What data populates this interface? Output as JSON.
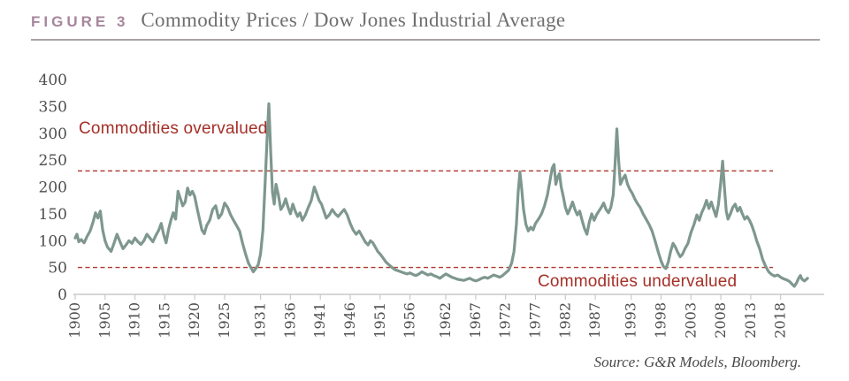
{
  "figure": {
    "label": "FIGURE 3",
    "title": "Commodity Prices / Dow Jones Industrial Average"
  },
  "annotations": {
    "overvalued": "Commodities overvalued",
    "undervalued": "Commodities undervalued"
  },
  "source": "Source: G&R Models, Bloomberg.",
  "colors": {
    "figure_label": "#A6869B",
    "title": "#6F6F6F",
    "rule": "#A9A2A8",
    "line": "#7E978F",
    "threshold": "#AF382B",
    "annotation": "#A43028",
    "axis": "#C9C9C9",
    "tick_label": "#4E4E4E",
    "source": "#4A4A4A"
  },
  "chart_data": {
    "type": "line",
    "title": "Commodity Prices / Dow Jones Industrial Average",
    "xlabel": "",
    "ylabel": "",
    "ylim": [
      0,
      400
    ],
    "ytick_step": 50,
    "xlim": [
      1900,
      2025
    ],
    "x_tick_years": [
      1900,
      1905,
      1910,
      1915,
      1920,
      1925,
      1931,
      1936,
      1941,
      1946,
      1951,
      1956,
      1962,
      1967,
      1972,
      1977,
      1982,
      1987,
      1993,
      1998,
      2003,
      2008,
      2013,
      2018
    ],
    "grid": false,
    "legend": "none",
    "thresholds": {
      "overvalued_above": 230,
      "undervalued_below": 50
    },
    "series": [
      {
        "name": "Commodity Prices / Dow Jones Industrial Average (indexed)",
        "points": [
          [
            1900,
            105
          ],
          [
            1900.3,
            112
          ],
          [
            1900.6,
            98
          ],
          [
            1901,
            102
          ],
          [
            1901.5,
            96
          ],
          [
            1902,
            108
          ],
          [
            1902.5,
            118
          ],
          [
            1903,
            135
          ],
          [
            1903.4,
            152
          ],
          [
            1903.8,
            142
          ],
          [
            1904.2,
            155
          ],
          [
            1904.6,
            120
          ],
          [
            1905,
            100
          ],
          [
            1905.4,
            88
          ],
          [
            1906,
            80
          ],
          [
            1906.5,
            95
          ],
          [
            1907,
            112
          ],
          [
            1907.5,
            98
          ],
          [
            1908,
            85
          ],
          [
            1908.5,
            92
          ],
          [
            1909,
            100
          ],
          [
            1909.5,
            95
          ],
          [
            1910,
            105
          ],
          [
            1910.5,
            98
          ],
          [
            1911,
            93
          ],
          [
            1911.5,
            100
          ],
          [
            1912,
            112
          ],
          [
            1912.5,
            105
          ],
          [
            1913,
            98
          ],
          [
            1913.5,
            110
          ],
          [
            1914,
            120
          ],
          [
            1914.4,
            132
          ],
          [
            1914.8,
            112
          ],
          [
            1915.2,
            96
          ],
          [
            1915.6,
            120
          ],
          [
            1916,
            138
          ],
          [
            1916.4,
            152
          ],
          [
            1916.8,
            140
          ],
          [
            1917.2,
            192
          ],
          [
            1917.6,
            178
          ],
          [
            1918,
            165
          ],
          [
            1918.4,
            172
          ],
          [
            1918.8,
            198
          ],
          [
            1919.2,
            185
          ],
          [
            1919.6,
            192
          ],
          [
            1920,
            182
          ],
          [
            1920.4,
            160
          ],
          [
            1920.8,
            140
          ],
          [
            1921.2,
            120
          ],
          [
            1921.6,
            113
          ],
          [
            1922,
            128
          ],
          [
            1922.5,
            138
          ],
          [
            1923,
            158
          ],
          [
            1923.5,
            165
          ],
          [
            1924,
            142
          ],
          [
            1924.5,
            150
          ],
          [
            1925,
            170
          ],
          [
            1925.5,
            162
          ],
          [
            1926,
            148
          ],
          [
            1926.5,
            138
          ],
          [
            1927,
            128
          ],
          [
            1927.5,
            118
          ],
          [
            1928,
            95
          ],
          [
            1928.5,
            75
          ],
          [
            1929,
            58
          ],
          [
            1929.4,
            50
          ],
          [
            1929.8,
            42
          ],
          [
            1930.2,
            48
          ],
          [
            1930.6,
            55
          ],
          [
            1931,
            75
          ],
          [
            1931.4,
            120
          ],
          [
            1931.8,
            215
          ],
          [
            1932.1,
            290
          ],
          [
            1932.4,
            355
          ],
          [
            1932.7,
            265
          ],
          [
            1933,
            190
          ],
          [
            1933.3,
            168
          ],
          [
            1933.6,
            205
          ],
          [
            1934,
            185
          ],
          [
            1934.4,
            158
          ],
          [
            1934.8,
            165
          ],
          [
            1935.2,
            178
          ],
          [
            1935.6,
            162
          ],
          [
            1936,
            150
          ],
          [
            1936.4,
            168
          ],
          [
            1936.8,
            155
          ],
          [
            1937.2,
            145
          ],
          [
            1937.6,
            152
          ],
          [
            1938,
            138
          ],
          [
            1938.5,
            148
          ],
          [
            1939,
            162
          ],
          [
            1939.5,
            175
          ],
          [
            1940,
            200
          ],
          [
            1940.4,
            188
          ],
          [
            1940.8,
            175
          ],
          [
            1941.2,
            168
          ],
          [
            1941.6,
            155
          ],
          [
            1942,
            142
          ],
          [
            1942.5,
            148
          ],
          [
            1943,
            158
          ],
          [
            1943.5,
            150
          ],
          [
            1944,
            145
          ],
          [
            1944.5,
            152
          ],
          [
            1945,
            158
          ],
          [
            1945.5,
            148
          ],
          [
            1946,
            132
          ],
          [
            1946.5,
            120
          ],
          [
            1947,
            112
          ],
          [
            1947.5,
            118
          ],
          [
            1948,
            108
          ],
          [
            1948.5,
            98
          ],
          [
            1949,
            92
          ],
          [
            1949.4,
            100
          ],
          [
            1949.8,
            96
          ],
          [
            1950.2,
            88
          ],
          [
            1950.6,
            80
          ],
          [
            1951,
            75
          ],
          [
            1951.5,
            68
          ],
          [
            1952,
            60
          ],
          [
            1952.5,
            55
          ],
          [
            1953,
            50
          ],
          [
            1953.5,
            46
          ],
          [
            1954,
            44
          ],
          [
            1954.5,
            42
          ],
          [
            1955,
            40
          ],
          [
            1955.5,
            38
          ],
          [
            1956,
            40
          ],
          [
            1956.5,
            37
          ],
          [
            1957,
            35
          ],
          [
            1957.5,
            38
          ],
          [
            1958,
            42
          ],
          [
            1958.5,
            39
          ],
          [
            1959,
            36
          ],
          [
            1959.5,
            38
          ],
          [
            1960,
            35
          ],
          [
            1960.5,
            33
          ],
          [
            1961,
            30
          ],
          [
            1961.5,
            34
          ],
          [
            1962,
            38
          ],
          [
            1962.5,
            35
          ],
          [
            1963,
            32
          ],
          [
            1963.5,
            30
          ],
          [
            1964,
            28
          ],
          [
            1964.5,
            27
          ],
          [
            1965,
            26
          ],
          [
            1965.5,
            28
          ],
          [
            1966,
            30
          ],
          [
            1966.5,
            27
          ],
          [
            1967,
            25
          ],
          [
            1967.5,
            27
          ],
          [
            1968,
            30
          ],
          [
            1968.5,
            32
          ],
          [
            1969,
            30
          ],
          [
            1969.5,
            33
          ],
          [
            1970,
            36
          ],
          [
            1970.5,
            34
          ],
          [
            1971,
            32
          ],
          [
            1971.5,
            35
          ],
          [
            1972,
            40
          ],
          [
            1972.5,
            45
          ],
          [
            1973,
            58
          ],
          [
            1973.4,
            80
          ],
          [
            1973.8,
            130
          ],
          [
            1974.1,
            190
          ],
          [
            1974.4,
            228
          ],
          [
            1974.7,
            195
          ],
          [
            1975,
            158
          ],
          [
            1975.4,
            130
          ],
          [
            1975.8,
            118
          ],
          [
            1976.2,
            125
          ],
          [
            1976.6,
            120
          ],
          [
            1977,
            132
          ],
          [
            1977.5,
            140
          ],
          [
            1978,
            150
          ],
          [
            1978.5,
            165
          ],
          [
            1979,
            185
          ],
          [
            1979.4,
            210
          ],
          [
            1979.8,
            235
          ],
          [
            1980.1,
            242
          ],
          [
            1980.4,
            205
          ],
          [
            1980.7,
            218
          ],
          [
            1981,
            225
          ],
          [
            1981.3,
            200
          ],
          [
            1981.6,
            185
          ],
          [
            1982,
            162
          ],
          [
            1982.4,
            150
          ],
          [
            1982.8,
            160
          ],
          [
            1983.2,
            172
          ],
          [
            1983.6,
            158
          ],
          [
            1984,
            148
          ],
          [
            1984.4,
            155
          ],
          [
            1984.8,
            138
          ],
          [
            1985.2,
            122
          ],
          [
            1985.6,
            112
          ],
          [
            1986,
            135
          ],
          [
            1986.4,
            150
          ],
          [
            1986.8,
            138
          ],
          [
            1987.2,
            148
          ],
          [
            1987.6,
            155
          ],
          [
            1988,
            162
          ],
          [
            1988.4,
            170
          ],
          [
            1988.8,
            158
          ],
          [
            1989.2,
            152
          ],
          [
            1989.6,
            162
          ],
          [
            1990,
            185
          ],
          [
            1990.3,
            240
          ],
          [
            1990.6,
            308
          ],
          [
            1990.9,
            250
          ],
          [
            1991.2,
            205
          ],
          [
            1991.6,
            215
          ],
          [
            1992,
            222
          ],
          [
            1992.4,
            205
          ],
          [
            1992.8,
            195
          ],
          [
            1993.2,
            188
          ],
          [
            1993.6,
            178
          ],
          [
            1994,
            170
          ],
          [
            1994.5,
            162
          ],
          [
            1995,
            150
          ],
          [
            1995.5,
            140
          ],
          [
            1996,
            130
          ],
          [
            1996.5,
            118
          ],
          [
            1997,
            100
          ],
          [
            1997.5,
            80
          ],
          [
            1998,
            62
          ],
          [
            1998.4,
            52
          ],
          [
            1998.8,
            48
          ],
          [
            1999.2,
            60
          ],
          [
            1999.6,
            80
          ],
          [
            2000,
            95
          ],
          [
            2000.4,
            88
          ],
          [
            2000.8,
            78
          ],
          [
            2001.2,
            70
          ],
          [
            2001.6,
            75
          ],
          [
            2002,
            85
          ],
          [
            2002.5,
            95
          ],
          [
            2003,
            115
          ],
          [
            2003.5,
            130
          ],
          [
            2004,
            148
          ],
          [
            2004.4,
            138
          ],
          [
            2004.8,
            152
          ],
          [
            2005.2,
            162
          ],
          [
            2005.6,
            175
          ],
          [
            2006,
            160
          ],
          [
            2006.4,
            172
          ],
          [
            2006.8,
            158
          ],
          [
            2007.2,
            145
          ],
          [
            2007.6,
            168
          ],
          [
            2008,
            210
          ],
          [
            2008.3,
            248
          ],
          [
            2008.6,
            200
          ],
          [
            2008.9,
            155
          ],
          [
            2009.2,
            140
          ],
          [
            2009.6,
            150
          ],
          [
            2010,
            162
          ],
          [
            2010.4,
            168
          ],
          [
            2010.8,
            155
          ],
          [
            2011.2,
            162
          ],
          [
            2011.6,
            150
          ],
          [
            2012,
            140
          ],
          [
            2012.4,
            145
          ],
          [
            2012.8,
            138
          ],
          [
            2013.2,
            128
          ],
          [
            2013.6,
            115
          ],
          [
            2014,
            100
          ],
          [
            2014.5,
            85
          ],
          [
            2015,
            65
          ],
          [
            2015.5,
            52
          ],
          [
            2016,
            42
          ],
          [
            2016.5,
            37
          ],
          [
            2017,
            34
          ],
          [
            2017.5,
            36
          ],
          [
            2018,
            32
          ],
          [
            2018.5,
            29
          ],
          [
            2019,
            27
          ],
          [
            2019.5,
            24
          ],
          [
            2020,
            18
          ],
          [
            2020.3,
            15
          ],
          [
            2020.7,
            22
          ],
          [
            2021,
            30
          ],
          [
            2021.3,
            35
          ],
          [
            2021.6,
            28
          ],
          [
            2022,
            25
          ],
          [
            2022.5,
            30
          ]
        ]
      }
    ]
  }
}
